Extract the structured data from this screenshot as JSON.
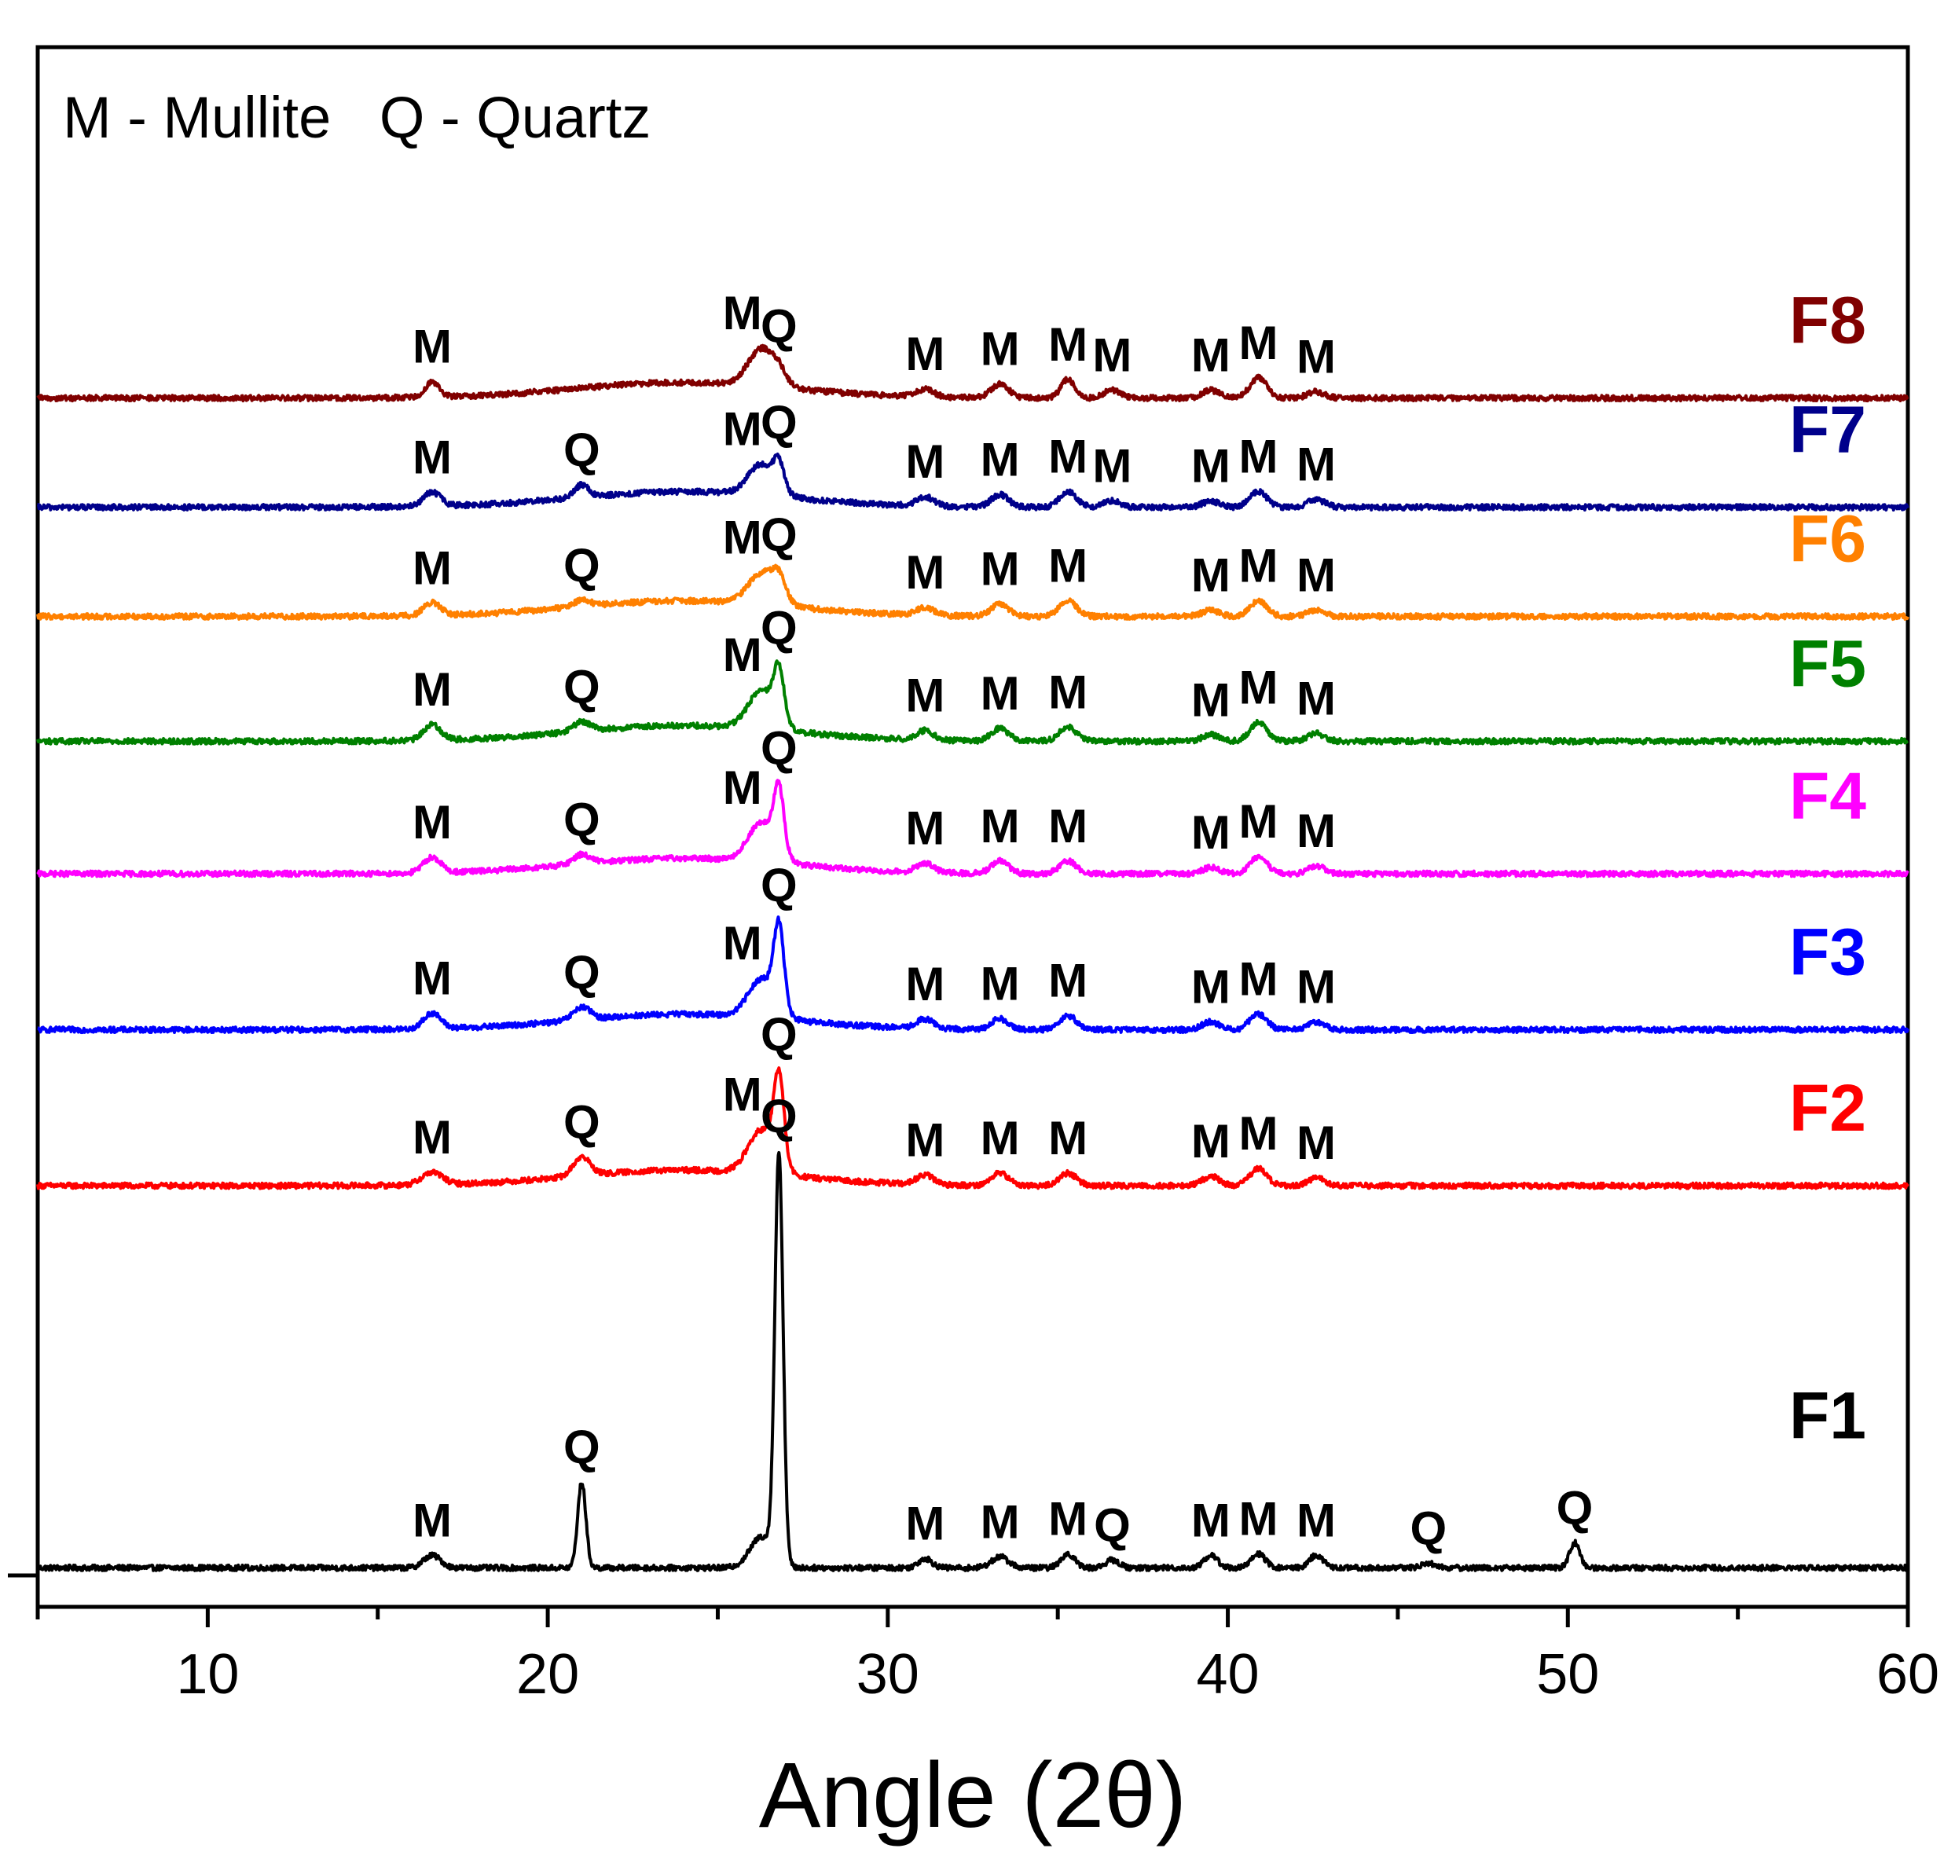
{
  "chart_data": {
    "type": "line",
    "title": "",
    "legend_text": "M - Mullite   Q - Quartz",
    "xlabel": "Angle (2θ)",
    "ylabel": "",
    "xlim": [
      5,
      60
    ],
    "ylim": [
      0,
      100
    ],
    "xticks": [
      10,
      20,
      30,
      40,
      50,
      60
    ],
    "xtick_labels": [
      "10",
      "20",
      "30",
      "40",
      "50",
      "60"
    ],
    "series": [
      {
        "name": "F1",
        "color": "#000000",
        "baseline": 2.5,
        "peaks": [
          [
            16.6,
            0.8,
            0.25
          ],
          [
            21.0,
            5.5,
            0.12
          ],
          [
            26.3,
            2.0,
            0.35
          ],
          [
            26.8,
            26.0,
            0.12
          ],
          [
            31.1,
            0.6,
            0.2
          ],
          [
            33.3,
            0.7,
            0.25
          ],
          [
            35.3,
            0.9,
            0.2
          ],
          [
            36.6,
            0.5,
            0.2
          ],
          [
            39.5,
            0.8,
            0.2
          ],
          [
            40.9,
            0.9,
            0.2
          ],
          [
            42.6,
            0.8,
            0.2
          ],
          [
            45.9,
            0.3,
            0.2
          ],
          [
            50.2,
            1.6,
            0.15
          ]
        ],
        "peak_labels": [
          {
            "text": "M",
            "x": 16.6
          },
          {
            "text": "Q",
            "x": 21.0
          },
          {
            "text": "Q",
            "x": 26.8
          },
          {
            "text": "M",
            "x": 31.1
          },
          {
            "text": "M",
            "x": 33.3
          },
          {
            "text": "M",
            "x": 35.3
          },
          {
            "text": "Q",
            "x": 36.6
          },
          {
            "text": "M",
            "x": 39.5
          },
          {
            "text": "M",
            "x": 40.9
          },
          {
            "text": "M",
            "x": 42.6
          },
          {
            "text": "Q",
            "x": 45.9
          },
          {
            "text": "Q",
            "x": 50.2
          }
        ]
      },
      {
        "name": "F2",
        "color": "#ff0000",
        "baseline": 27.0,
        "peaks": [
          [
            16.6,
            0.8,
            0.3
          ],
          [
            21.0,
            1.2,
            0.25
          ],
          [
            26.3,
            2.8,
            0.4
          ],
          [
            26.8,
            5.5,
            0.15
          ],
          [
            31.1,
            0.6,
            0.25
          ],
          [
            33.3,
            0.8,
            0.25
          ],
          [
            35.3,
            0.8,
            0.25
          ],
          [
            39.5,
            0.6,
            0.25
          ],
          [
            40.9,
            1.1,
            0.25
          ],
          [
            42.6,
            0.5,
            0.25
          ]
        ],
        "peak_labels": [
          {
            "text": "M",
            "x": 16.6
          },
          {
            "text": "Q",
            "x": 21.0
          },
          {
            "text": "M",
            "x": 26.3
          },
          {
            "text": "Q",
            "x": 26.8
          },
          {
            "text": "M",
            "x": 31.1
          },
          {
            "text": "M",
            "x": 33.3
          },
          {
            "text": "M",
            "x": 35.3
          },
          {
            "text": "M",
            "x": 39.5
          },
          {
            "text": "M",
            "x": 40.9
          },
          {
            "text": "M",
            "x": 42.6
          }
        ]
      },
      {
        "name": "F3",
        "color": "#0000ff",
        "baseline": 37.0,
        "peaks": [
          [
            16.6,
            1.0,
            0.25
          ],
          [
            21.0,
            0.8,
            0.25
          ],
          [
            26.3,
            2.5,
            0.4
          ],
          [
            26.8,
            5.2,
            0.15
          ],
          [
            31.1,
            0.6,
            0.25
          ],
          [
            33.3,
            0.7,
            0.25
          ],
          [
            35.3,
            0.9,
            0.25
          ],
          [
            39.5,
            0.5,
            0.25
          ],
          [
            40.9,
            1.0,
            0.25
          ],
          [
            42.6,
            0.5,
            0.25
          ]
        ],
        "peak_labels": [
          {
            "text": "M",
            "x": 16.6
          },
          {
            "text": "Q",
            "x": 21.0
          },
          {
            "text": "M",
            "x": 26.3
          },
          {
            "text": "Q",
            "x": 26.8
          },
          {
            "text": "M",
            "x": 31.1
          },
          {
            "text": "M",
            "x": 33.3
          },
          {
            "text": "M",
            "x": 35.3
          },
          {
            "text": "M",
            "x": 39.5
          },
          {
            "text": "M",
            "x": 40.9
          },
          {
            "text": "M",
            "x": 42.6
          }
        ]
      },
      {
        "name": "F4",
        "color": "#ff00ff",
        "baseline": 47.0,
        "peaks": [
          [
            16.6,
            1.0,
            0.25
          ],
          [
            21.0,
            0.6,
            0.25
          ],
          [
            26.3,
            2.5,
            0.4
          ],
          [
            26.8,
            4.0,
            0.15
          ],
          [
            31.1,
            0.6,
            0.25
          ],
          [
            33.3,
            0.8,
            0.25
          ],
          [
            35.3,
            0.8,
            0.25
          ],
          [
            39.5,
            0.4,
            0.25
          ],
          [
            40.9,
            1.1,
            0.25
          ],
          [
            42.6,
            0.5,
            0.25
          ]
        ],
        "peak_labels": [
          {
            "text": "M",
            "x": 16.6
          },
          {
            "text": "Q",
            "x": 21.0
          },
          {
            "text": "M",
            "x": 26.3
          },
          {
            "text": "Q",
            "x": 26.8
          },
          {
            "text": "M",
            "x": 31.1
          },
          {
            "text": "M",
            "x": 33.3
          },
          {
            "text": "M",
            "x": 35.3
          },
          {
            "text": "M",
            "x": 39.5
          },
          {
            "text": "M",
            "x": 40.9
          },
          {
            "text": "M",
            "x": 42.6
          }
        ]
      },
      {
        "name": "F5",
        "color": "#008000",
        "baseline": 55.5,
        "peaks": [
          [
            16.6,
            1.0,
            0.25
          ],
          [
            21.0,
            0.6,
            0.25
          ],
          [
            26.3,
            2.5,
            0.4
          ],
          [
            26.8,
            3.2,
            0.15
          ],
          [
            31.1,
            0.6,
            0.25
          ],
          [
            33.3,
            0.8,
            0.25
          ],
          [
            35.3,
            0.9,
            0.25
          ],
          [
            39.5,
            0.4,
            0.25
          ],
          [
            40.9,
            1.2,
            0.25
          ],
          [
            42.6,
            0.5,
            0.25
          ]
        ],
        "peak_labels": [
          {
            "text": "M",
            "x": 16.6
          },
          {
            "text": "Q",
            "x": 21.0
          },
          {
            "text": "M",
            "x": 26.3
          },
          {
            "text": "Q",
            "x": 26.8
          },
          {
            "text": "M",
            "x": 31.1
          },
          {
            "text": "M",
            "x": 33.3
          },
          {
            "text": "M",
            "x": 35.3
          },
          {
            "text": "M",
            "x": 39.5
          },
          {
            "text": "M",
            "x": 40.9
          },
          {
            "text": "M",
            "x": 42.6
          }
        ]
      },
      {
        "name": "F6",
        "color": "#ff8000",
        "baseline": 63.5,
        "peaks": [
          [
            16.6,
            0.8,
            0.25
          ],
          [
            21.0,
            0.4,
            0.25
          ],
          [
            26.3,
            2.0,
            0.4
          ],
          [
            26.8,
            1.4,
            0.2
          ],
          [
            31.1,
            0.5,
            0.25
          ],
          [
            33.3,
            0.8,
            0.25
          ],
          [
            35.3,
            1.0,
            0.25
          ],
          [
            39.5,
            0.4,
            0.25
          ],
          [
            40.9,
            1.0,
            0.25
          ],
          [
            42.6,
            0.4,
            0.25
          ]
        ],
        "peak_labels": [
          {
            "text": "M",
            "x": 16.6
          },
          {
            "text": "Q",
            "x": 21.0
          },
          {
            "text": "M",
            "x": 26.3
          },
          {
            "text": "Q",
            "x": 26.8
          },
          {
            "text": "M",
            "x": 31.1
          },
          {
            "text": "M",
            "x": 33.3
          },
          {
            "text": "M",
            "x": 35.3
          },
          {
            "text": "M",
            "x": 39.5
          },
          {
            "text": "M",
            "x": 40.9
          },
          {
            "text": "M",
            "x": 42.6
          }
        ]
      },
      {
        "name": "F7",
        "color": "#00008b",
        "baseline": 70.5,
        "peaks": [
          [
            16.6,
            0.9,
            0.25
          ],
          [
            21.0,
            0.8,
            0.2
          ],
          [
            26.3,
            2.0,
            0.4
          ],
          [
            26.8,
            1.6,
            0.15
          ],
          [
            31.1,
            0.6,
            0.25
          ],
          [
            33.3,
            0.8,
            0.25
          ],
          [
            35.3,
            1.0,
            0.25
          ],
          [
            36.6,
            0.4,
            0.25
          ],
          [
            39.5,
            0.4,
            0.25
          ],
          [
            40.9,
            1.0,
            0.25
          ],
          [
            42.6,
            0.5,
            0.25
          ]
        ],
        "peak_labels": [
          {
            "text": "M",
            "x": 16.6
          },
          {
            "text": "Q",
            "x": 21.0
          },
          {
            "text": "M",
            "x": 26.3
          },
          {
            "text": "Q",
            "x": 26.8
          },
          {
            "text": "M",
            "x": 31.1
          },
          {
            "text": "M",
            "x": 33.3
          },
          {
            "text": "M",
            "x": 35.3
          },
          {
            "text": "M",
            "x": 36.6
          },
          {
            "text": "M",
            "x": 39.5
          },
          {
            "text": "M",
            "x": 40.9
          },
          {
            "text": "M",
            "x": 42.6
          }
        ]
      },
      {
        "name": "F8",
        "color": "#800000",
        "baseline": 77.5,
        "peaks": [
          [
            16.6,
            1.0,
            0.2
          ],
          [
            26.3,
            2.4,
            0.4
          ],
          [
            26.8,
            0.6,
            0.2
          ],
          [
            31.1,
            0.5,
            0.25
          ],
          [
            33.3,
            0.9,
            0.25
          ],
          [
            35.3,
            1.2,
            0.2
          ],
          [
            36.6,
            0.5,
            0.25
          ],
          [
            39.5,
            0.5,
            0.25
          ],
          [
            40.9,
            1.3,
            0.25
          ],
          [
            42.6,
            0.4,
            0.25
          ]
        ],
        "peak_labels": [
          {
            "text": "M",
            "x": 16.6
          },
          {
            "text": "M",
            "x": 26.3
          },
          {
            "text": "Q",
            "x": 26.8
          },
          {
            "text": "M",
            "x": 31.1
          },
          {
            "text": "M",
            "x": 33.3
          },
          {
            "text": "M",
            "x": 35.3
          },
          {
            "text": "M",
            "x": 36.6
          },
          {
            "text": "M",
            "x": 39.5
          },
          {
            "text": "M",
            "x": 40.9
          },
          {
            "text": "M",
            "x": 42.6
          }
        ]
      }
    ]
  }
}
